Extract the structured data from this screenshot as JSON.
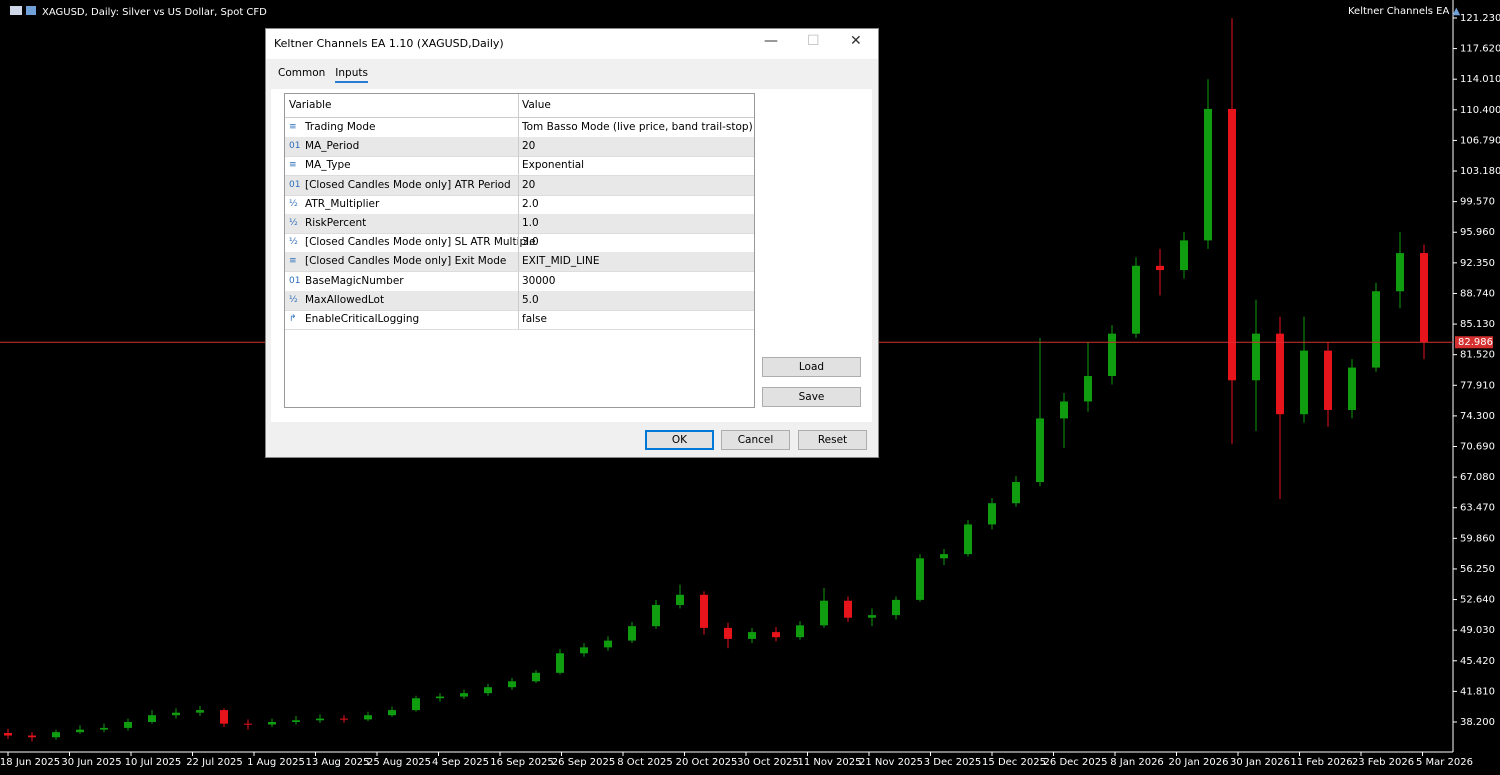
{
  "chart_header": {
    "symbol": "XAGUSD, Daily:  Silver vs US Dollar, Spot CFD",
    "ea_name": "Keltner Channels EA"
  },
  "chart": {
    "type": "candlestick",
    "ylim": [
      34.66,
      123.35
    ],
    "yticks": [
      {
        "value": 121.23,
        "label": "121.230"
      },
      {
        "value": 117.62,
        "label": "117.620"
      },
      {
        "value": 114.01,
        "label": "114.010"
      },
      {
        "value": 110.4,
        "label": "110.400"
      },
      {
        "value": 106.79,
        "label": "106.790"
      },
      {
        "value": 103.18,
        "label": "103.180"
      },
      {
        "value": 99.57,
        "label": "99.570"
      },
      {
        "value": 95.96,
        "label": "95.960"
      },
      {
        "value": 92.35,
        "label": "92.350"
      },
      {
        "value": 88.74,
        "label": "88.740"
      },
      {
        "value": 85.13,
        "label": "85.130"
      },
      {
        "value": 81.52,
        "label": "81.520"
      },
      {
        "value": 77.91,
        "label": "77.910"
      },
      {
        "value": 74.3,
        "label": "74.300"
      },
      {
        "value": 70.69,
        "label": "70.690"
      },
      {
        "value": 67.08,
        "label": "67.080"
      },
      {
        "value": 63.47,
        "label": "63.470"
      },
      {
        "value": 59.86,
        "label": "59.860"
      },
      {
        "value": 56.25,
        "label": "56.250"
      },
      {
        "value": 52.64,
        "label": "52.640"
      },
      {
        "value": 49.03,
        "label": "49.030"
      },
      {
        "value": 45.42,
        "label": "45.420"
      },
      {
        "value": 41.81,
        "label": "41.810"
      },
      {
        "value": 38.2,
        "label": "38.200"
      }
    ],
    "dates": [
      "18 Jun 2025",
      "30 Jun 2025",
      "10 Jul 2025",
      "22 Jul 2025",
      "1 Aug 2025",
      "13 Aug 2025",
      "25 Aug 2025",
      "4 Sep 2025",
      "16 Sep 2025",
      "26 Sep 2025",
      "8 Oct 2025",
      "20 Oct 2025",
      "30 Oct 2025",
      "11 Nov 2025",
      "21 Nov 2025",
      "3 Dec 2025",
      "15 Dec 2025",
      "26 Dec 2025",
      "8 Jan 2026",
      "20 Jan 2026",
      "30 Jan 2026",
      "11 Feb 2026",
      "23 Feb 2026",
      "5 Mar 2026"
    ],
    "current_price": 82.986,
    "price_line_color": "#d43030",
    "up_color": "#0f9d0f",
    "down_color": "#e8141c",
    "ohlc": [
      [
        36.9,
        37.4,
        36.2,
        36.6
      ],
      [
        36.6,
        37.0,
        35.9,
        36.4
      ],
      [
        36.4,
        37.3,
        36.1,
        37.0
      ],
      [
        37.0,
        37.8,
        36.8,
        37.3
      ],
      [
        37.3,
        38.0,
        37.0,
        37.5
      ],
      [
        37.5,
        38.6,
        37.2,
        38.2
      ],
      [
        38.2,
        39.6,
        38.0,
        39.0
      ],
      [
        39.0,
        39.8,
        38.6,
        39.3
      ],
      [
        39.3,
        40.1,
        38.9,
        39.6
      ],
      [
        39.6,
        39.8,
        37.6,
        38.0
      ],
      [
        38.0,
        38.5,
        37.3,
        37.9
      ],
      [
        37.9,
        38.6,
        37.6,
        38.2
      ],
      [
        38.2,
        38.9,
        37.9,
        38.4
      ],
      [
        38.4,
        39.1,
        38.1,
        38.6
      ],
      [
        38.6,
        39.0,
        38.1,
        38.5
      ],
      [
        38.5,
        39.4,
        38.3,
        39.0
      ],
      [
        39.0,
        40.0,
        38.8,
        39.6
      ],
      [
        39.6,
        41.3,
        39.4,
        41.0
      ],
      [
        41.0,
        41.6,
        40.6,
        41.2
      ],
      [
        41.2,
        42.0,
        40.9,
        41.6
      ],
      [
        41.6,
        42.7,
        41.3,
        42.3
      ],
      [
        42.3,
        43.4,
        42.0,
        43.0
      ],
      [
        43.0,
        44.3,
        42.8,
        44.0
      ],
      [
        44.0,
        46.8,
        43.8,
        46.3
      ],
      [
        46.3,
        47.5,
        45.9,
        47.0
      ],
      [
        47.0,
        48.3,
        46.6,
        47.8
      ],
      [
        47.8,
        50.0,
        47.5,
        49.5
      ],
      [
        49.5,
        52.6,
        49.2,
        52.0
      ],
      [
        52.0,
        54.4,
        51.6,
        53.2
      ],
      [
        53.2,
        53.6,
        48.5,
        49.3
      ],
      [
        49.3,
        49.9,
        46.9,
        48.0
      ],
      [
        48.0,
        49.3,
        47.5,
        48.8
      ],
      [
        48.8,
        49.4,
        47.7,
        48.2
      ],
      [
        48.2,
        50.1,
        47.9,
        49.6
      ],
      [
        49.6,
        54.0,
        49.3,
        52.5
      ],
      [
        52.5,
        53.0,
        50.0,
        50.5
      ],
      [
        50.5,
        51.6,
        49.5,
        50.8
      ],
      [
        50.8,
        53.0,
        50.3,
        52.6
      ],
      [
        52.6,
        58.0,
        52.4,
        57.5
      ],
      [
        57.5,
        58.6,
        56.7,
        58.0
      ],
      [
        58.0,
        62.0,
        57.7,
        61.5
      ],
      [
        61.5,
        64.6,
        60.9,
        64.0
      ],
      [
        64.0,
        67.2,
        63.6,
        66.5
      ],
      [
        66.5,
        83.5,
        66.0,
        74.0
      ],
      [
        74.0,
        77.0,
        70.5,
        76.0
      ],
      [
        76.0,
        83.0,
        74.8,
        79.0
      ],
      [
        79.0,
        85.0,
        78.0,
        84.0
      ],
      [
        84.0,
        93.0,
        83.5,
        92.0
      ],
      [
        92.0,
        94.0,
        88.5,
        91.5
      ],
      [
        91.5,
        96.0,
        90.5,
        95.0
      ],
      [
        95.0,
        114.0,
        94.0,
        110.5
      ],
      [
        110.5,
        121.2,
        71.0,
        78.5
      ],
      [
        78.5,
        88.0,
        72.5,
        84.0
      ],
      [
        84.0,
        86.0,
        64.5,
        74.5
      ],
      [
        74.5,
        86.0,
        73.5,
        82.0
      ],
      [
        82.0,
        83.0,
        73.0,
        75.0
      ],
      [
        75.0,
        81.0,
        74.0,
        80.0
      ],
      [
        80.0,
        90.0,
        79.5,
        89.0
      ],
      [
        89.0,
        96.0,
        87.0,
        93.5
      ],
      [
        93.5,
        94.5,
        81.0,
        83.0
      ]
    ]
  },
  "dialog": {
    "title": "Keltner Channels EA 1.10 (XAGUSD,Daily)",
    "tabs": [
      "Common",
      "Inputs"
    ],
    "columns": [
      "Variable",
      "Value"
    ],
    "rows": [
      {
        "icon": "≡",
        "variable": "Trading Mode",
        "value": "Tom Basso Mode (live price, band trail-stop)"
      },
      {
        "icon": "01",
        "variable": "MA_Period",
        "value": "20"
      },
      {
        "icon": "≡",
        "variable": "MA_Type",
        "value": "Exponential"
      },
      {
        "icon": "01",
        "variable": "[Closed Candles Mode only] ATR Period",
        "value": "20"
      },
      {
        "icon": "½",
        "variable": "ATR_Multiplier",
        "value": "2.0"
      },
      {
        "icon": "½",
        "variable": "RiskPercent",
        "value": "1.0"
      },
      {
        "icon": "½",
        "variable": "[Closed Candles Mode only] SL ATR Multiple",
        "value": "3.0"
      },
      {
        "icon": "≡",
        "variable": "[Closed Candles Mode only] Exit Mode",
        "value": "EXIT_MID_LINE"
      },
      {
        "icon": "01",
        "variable": "BaseMagicNumber",
        "value": "30000"
      },
      {
        "icon": "½",
        "variable": "MaxAllowedLot",
        "value": "5.0"
      },
      {
        "icon": "↱",
        "variable": "EnableCriticalLogging",
        "value": "false"
      }
    ],
    "side_buttons": [
      "Load",
      "Save"
    ],
    "buttons": [
      "OK",
      "Cancel",
      "Reset"
    ]
  }
}
